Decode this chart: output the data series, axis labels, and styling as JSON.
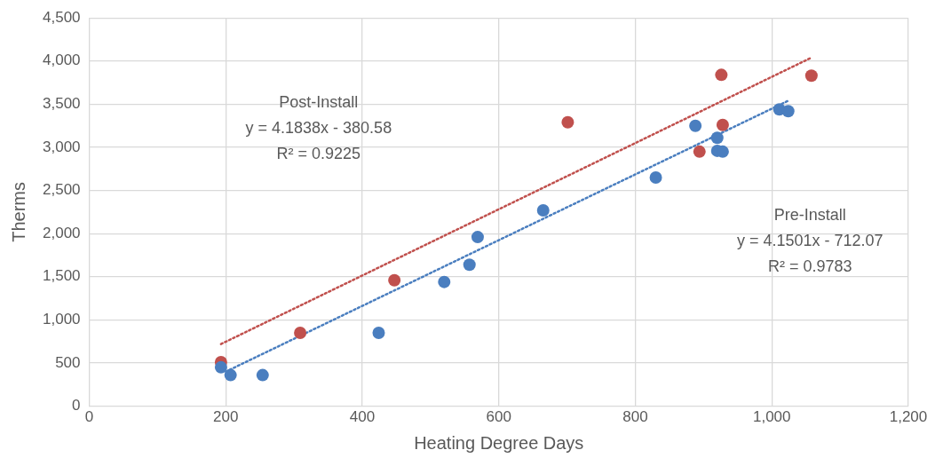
{
  "chart_data": {
    "type": "scatter",
    "xlabel": "Heating Degree Days",
    "ylabel": "Therms",
    "xlim": [
      0,
      1200
    ],
    "xticks": [
      0,
      {
        "value": 200,
        "label": "200"
      },
      {
        "value": 400,
        "label": "400"
      },
      {
        "value": 600,
        "label": "600"
      },
      {
        "value": 800,
        "label": "800"
      },
      {
        "value": 1000,
        "label": "1,000"
      },
      {
        "value": 1200,
        "label": "1,200"
      }
    ],
    "ylim": [
      0,
      4500
    ],
    "yticks": [
      0,
      {
        "value": 500,
        "label": "500"
      },
      {
        "value": 1000,
        "label": "1,000"
      },
      {
        "value": 1500,
        "label": "1,500"
      },
      {
        "value": 2000,
        "label": "2,000"
      },
      {
        "value": 2500,
        "label": "2,500"
      },
      {
        "value": 3000,
        "label": "3,000"
      },
      {
        "value": 3500,
        "label": "3,500"
      },
      {
        "value": 4000,
        "label": "4,000"
      },
      {
        "value": 4500,
        "label": "4,500"
      }
    ],
    "grid": true,
    "legend": false,
    "marker": "circle",
    "series": [
      {
        "color": "#4a7ebf",
        "x": [
          193,
          207,
          254,
          424,
          520,
          557,
          569,
          665,
          830,
          888,
          920,
          920,
          928,
          1011,
          1024
        ],
        "values": [
          450,
          360,
          360,
          850,
          1440,
          1640,
          1960,
          2270,
          2650,
          3250,
          3110,
          2960,
          2950,
          3440,
          3420
        ]
      },
      {
        "color": "#c0504d",
        "x": [
          193,
          309,
          447,
          701,
          894,
          926,
          928,
          1058
        ],
        "values": [
          510,
          850,
          1460,
          3290,
          2950,
          3840,
          3260,
          3830
        ]
      },
      {
        "type": "line",
        "line_style": "dotted",
        "marker": "none",
        "color": "#4a7ebf",
        "x": [
          200,
          1024
        ],
        "values": [
          400,
          3540
        ]
      },
      {
        "type": "line",
        "line_style": "dotted",
        "marker": "none",
        "color": "#c0504d",
        "x": [
          193,
          1058
        ],
        "values": [
          720,
          4040
        ]
      }
    ],
    "annotations": [
      "Post-Install",
      "y = 4.1838x - 380.58",
      "R² = 0.9225",
      "Pre-Install",
      "y = 4.1501x - 712.07",
      "R² = 0.9783"
    ]
  }
}
